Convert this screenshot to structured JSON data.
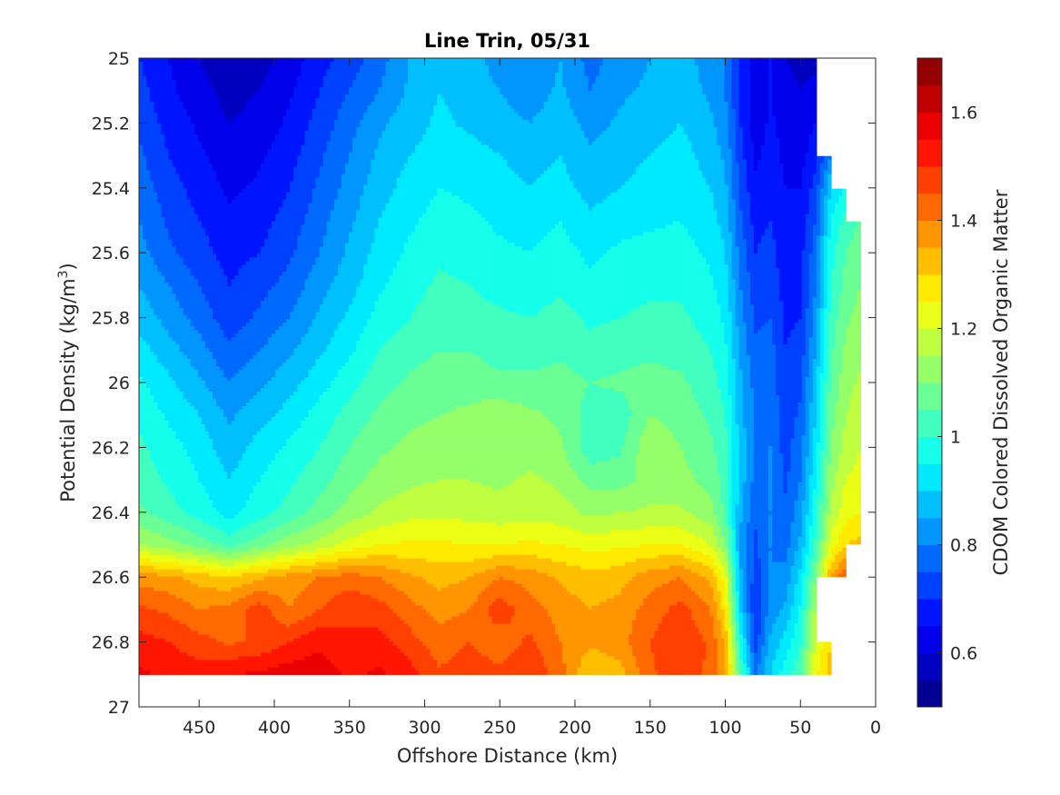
{
  "chart_data": {
    "type": "heatmap",
    "subtype": "filled-contour",
    "title": "Line Trin, 05/31",
    "xlabel": "Offshore Distance (km)",
    "ylabel_main": "Potential Density (kg/m",
    "ylabel_sup": "3",
    "ylabel_end": ")",
    "colorbar_label": "CDOM Colored Dissolved Organic Matter",
    "colormap": "jet",
    "x_reversed": true,
    "y_reversed": true,
    "xlim": [
      490,
      0
    ],
    "ylim": [
      25,
      27
    ],
    "clim": [
      0.5,
      1.7
    ],
    "contour_step": 0.05,
    "x_ticks": [
      450,
      400,
      350,
      300,
      250,
      200,
      150,
      100,
      50,
      0
    ],
    "x_tick_labels": [
      "450",
      "400",
      "350",
      "300",
      "250",
      "200",
      "150",
      "100",
      "50",
      "0"
    ],
    "y_ticks": [
      25,
      25.2,
      25.4,
      25.6,
      25.8,
      26,
      26.2,
      26.4,
      26.6,
      26.8,
      27
    ],
    "y_tick_labels": [
      "25",
      "25.2",
      "25.4",
      "25.6",
      "25.8",
      "26",
      "26.2",
      "26.4",
      "26.6",
      "26.8",
      "27"
    ],
    "colorbar_ticks": [
      0.6,
      0.8,
      1.0,
      1.2,
      1.4,
      1.6
    ],
    "colorbar_tick_labels": [
      "0.6",
      "0.8",
      "1",
      "1.2",
      "1.4",
      "1.6"
    ],
    "x": [
      490,
      470,
      450,
      430,
      410,
      390,
      370,
      350,
      330,
      310,
      290,
      270,
      250,
      230,
      210,
      190,
      170,
      150,
      130,
      110,
      100,
      90,
      80,
      70,
      60,
      50,
      40,
      30,
      20,
      10
    ],
    "y": [
      25.0,
      25.1,
      25.2,
      25.3,
      25.4,
      25.5,
      25.6,
      25.7,
      25.8,
      25.9,
      26.0,
      26.1,
      26.2,
      26.3,
      26.4,
      26.5,
      26.6,
      26.7,
      26.8,
      26.9
    ],
    "z": [
      [
        0.7,
        0.65,
        0.6,
        0.55,
        0.58,
        0.62,
        0.68,
        0.72,
        0.78,
        0.85,
        0.9,
        0.88,
        0.82,
        0.8,
        0.85,
        0.78,
        0.82,
        0.85,
        0.88,
        0.82,
        0.8,
        0.7,
        0.62,
        0.65,
        0.6,
        0.58,
        0.58,
        null,
        null,
        null
      ],
      [
        0.72,
        0.66,
        0.62,
        0.58,
        0.6,
        0.64,
        0.7,
        0.75,
        0.8,
        0.86,
        0.9,
        0.88,
        0.85,
        0.82,
        0.86,
        0.8,
        0.84,
        0.86,
        0.88,
        0.84,
        0.8,
        0.7,
        0.62,
        0.65,
        0.62,
        0.6,
        0.62,
        null,
        null,
        null
      ],
      [
        0.74,
        0.68,
        0.64,
        0.6,
        0.62,
        0.66,
        0.72,
        0.78,
        0.84,
        0.88,
        0.91,
        0.89,
        0.87,
        0.85,
        0.88,
        0.83,
        0.86,
        0.88,
        0.9,
        0.86,
        0.82,
        0.7,
        0.62,
        0.66,
        0.63,
        0.62,
        0.65,
        null,
        null,
        null
      ],
      [
        0.76,
        0.7,
        0.66,
        0.62,
        0.64,
        0.68,
        0.74,
        0.8,
        0.86,
        0.9,
        0.92,
        0.92,
        0.9,
        0.88,
        0.9,
        0.86,
        0.88,
        0.9,
        0.92,
        0.88,
        0.84,
        0.72,
        0.64,
        0.67,
        0.64,
        0.63,
        0.68,
        0.8,
        null,
        null
      ],
      [
        0.78,
        0.72,
        0.68,
        0.64,
        0.66,
        0.7,
        0.76,
        0.82,
        0.88,
        0.92,
        0.95,
        0.94,
        0.92,
        0.9,
        0.92,
        0.88,
        0.9,
        0.92,
        0.93,
        0.9,
        0.86,
        0.74,
        0.66,
        0.68,
        0.65,
        0.65,
        0.72,
        0.9,
        0.95,
        null
      ],
      [
        0.8,
        0.74,
        0.7,
        0.66,
        0.68,
        0.72,
        0.78,
        0.84,
        0.9,
        0.94,
        0.97,
        0.96,
        0.94,
        0.93,
        0.95,
        0.91,
        0.93,
        0.94,
        0.95,
        0.92,
        0.88,
        0.76,
        0.68,
        0.7,
        0.66,
        0.67,
        0.75,
        0.95,
        1.02,
        1.06
      ],
      [
        0.82,
        0.76,
        0.72,
        0.68,
        0.7,
        0.74,
        0.8,
        0.86,
        0.92,
        0.96,
        0.99,
        0.98,
        0.96,
        0.95,
        0.97,
        0.94,
        0.96,
        0.97,
        0.97,
        0.94,
        0.9,
        0.78,
        0.7,
        0.72,
        0.67,
        0.68,
        0.78,
        0.98,
        1.05,
        1.08
      ],
      [
        0.85,
        0.8,
        0.75,
        0.7,
        0.73,
        0.77,
        0.83,
        0.88,
        0.94,
        0.98,
        1.01,
        1.0,
        0.98,
        0.97,
        0.99,
        0.96,
        0.98,
        0.99,
        0.99,
        0.96,
        0.92,
        0.8,
        0.72,
        0.73,
        0.68,
        0.69,
        0.8,
        1.0,
        1.07,
        1.1
      ],
      [
        0.88,
        0.83,
        0.78,
        0.72,
        0.76,
        0.8,
        0.86,
        0.91,
        0.97,
        1.0,
        1.03,
        1.02,
        1.01,
        1.0,
        1.02,
        0.99,
        1.0,
        1.01,
        1.01,
        0.98,
        0.94,
        0.82,
        0.74,
        0.75,
        0.69,
        0.7,
        0.82,
        1.02,
        1.09,
        1.12
      ],
      [
        0.92,
        0.87,
        0.82,
        0.76,
        0.8,
        0.84,
        0.89,
        0.94,
        1.0,
        1.03,
        1.05,
        1.05,
        1.03,
        1.03,
        1.04,
        1.02,
        1.03,
        1.04,
        1.03,
        1.0,
        0.96,
        0.84,
        0.76,
        0.77,
        0.7,
        0.72,
        0.85,
        1.04,
        1.11,
        1.14
      ],
      [
        0.96,
        0.91,
        0.86,
        0.8,
        0.84,
        0.88,
        0.93,
        0.98,
        1.03,
        1.06,
        1.08,
        1.08,
        1.06,
        1.06,
        1.07,
        1.05,
        1.06,
        1.07,
        1.06,
        1.02,
        0.98,
        0.86,
        0.78,
        0.78,
        0.71,
        0.74,
        0.88,
        1.06,
        1.13,
        1.16
      ],
      [
        0.99,
        0.94,
        0.9,
        0.84,
        0.88,
        0.92,
        0.97,
        1.02,
        1.06,
        1.09,
        1.1,
        1.11,
        1.14,
        1.11,
        1.09,
        1.03,
        1.02,
        1.1,
        1.08,
        1.04,
        1.0,
        0.87,
        0.79,
        0.79,
        0.72,
        0.76,
        0.9,
        1.08,
        1.15,
        1.18
      ],
      [
        1.01,
        0.97,
        0.93,
        0.87,
        0.92,
        0.96,
        1.0,
        1.05,
        1.09,
        1.11,
        1.12,
        1.13,
        1.12,
        1.12,
        1.11,
        1.02,
        1.04,
        1.14,
        1.1,
        1.06,
        1.02,
        0.88,
        0.79,
        0.8,
        0.73,
        0.78,
        0.92,
        1.1,
        1.17,
        1.2
      ],
      [
        1.03,
        0.99,
        0.95,
        0.9,
        0.95,
        0.99,
        1.03,
        1.08,
        1.12,
        1.14,
        1.15,
        1.15,
        1.14,
        1.16,
        1.14,
        1.08,
        1.08,
        1.12,
        1.12,
        1.08,
        1.03,
        0.88,
        0.78,
        0.8,
        0.74,
        0.8,
        0.95,
        1.13,
        1.2,
        1.22
      ],
      [
        1.06,
        1.02,
        0.98,
        0.93,
        0.98,
        1.02,
        1.07,
        1.12,
        1.16,
        1.18,
        1.19,
        1.18,
        1.17,
        1.18,
        1.17,
        1.14,
        1.15,
        1.16,
        1.16,
        1.12,
        1.04,
        0.86,
        0.76,
        0.8,
        0.76,
        0.83,
        0.98,
        1.16,
        1.23,
        1.25
      ],
      [
        1.15,
        1.12,
        1.08,
        1.03,
        1.08,
        1.13,
        1.17,
        1.22,
        1.25,
        1.26,
        1.26,
        1.25,
        1.25,
        1.26,
        1.25,
        1.23,
        1.24,
        1.25,
        1.25,
        1.2,
        1.1,
        0.84,
        0.74,
        0.8,
        0.78,
        0.86,
        1.02,
        1.22,
        1.3,
        1.32
      ],
      [
        1.38,
        1.36,
        1.33,
        1.3,
        1.34,
        1.37,
        1.4,
        1.42,
        1.4,
        1.36,
        1.33,
        1.35,
        1.4,
        1.38,
        1.34,
        1.32,
        1.33,
        1.38,
        1.4,
        1.34,
        1.22,
        0.86,
        0.72,
        0.8,
        0.82,
        0.92,
        1.1,
        1.35,
        1.45,
        null
      ],
      [
        1.46,
        1.44,
        1.4,
        1.42,
        1.48,
        1.4,
        1.45,
        1.5,
        1.47,
        1.42,
        1.38,
        1.4,
        1.48,
        1.42,
        1.38,
        1.35,
        1.37,
        1.42,
        1.47,
        1.4,
        1.28,
        0.9,
        0.7,
        0.82,
        0.86,
        0.96,
        1.16,
        null,
        null,
        null
      ],
      [
        1.52,
        1.5,
        1.47,
        1.44,
        1.46,
        1.5,
        1.54,
        1.5,
        1.52,
        1.47,
        1.42,
        1.45,
        1.42,
        1.46,
        1.4,
        1.36,
        1.38,
        1.45,
        1.5,
        1.44,
        1.34,
        0.98,
        0.72,
        0.86,
        0.92,
        1.0,
        1.2,
        1.3,
        null,
        null
      ],
      [
        1.56,
        1.54,
        1.52,
        1.55,
        1.56,
        1.58,
        1.58,
        1.54,
        1.56,
        1.52,
        1.46,
        1.48,
        1.46,
        1.5,
        1.42,
        1.3,
        1.33,
        1.44,
        1.48,
        1.44,
        1.36,
        1.04,
        0.8,
        0.9,
        0.98,
        1.04,
        1.24,
        1.32,
        null,
        null
      ]
    ]
  }
}
